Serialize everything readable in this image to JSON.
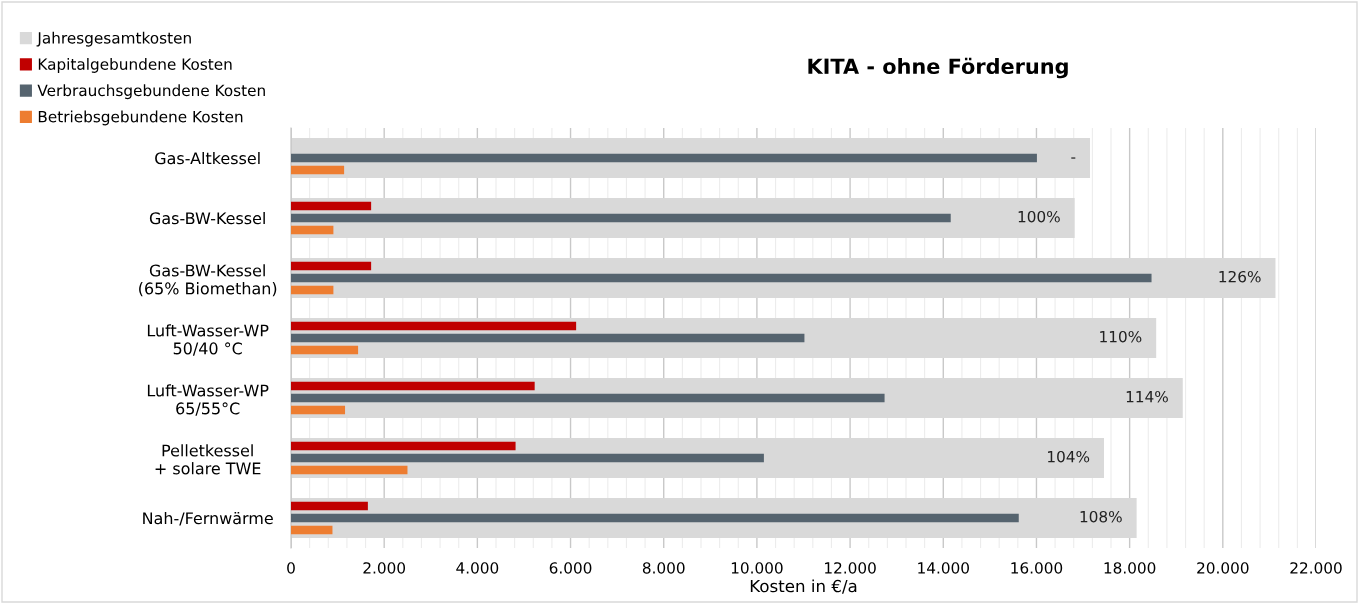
{
  "chart_data": {
    "type": "bar",
    "orientation": "horizontal",
    "title": "KITA - ohne Förderung",
    "xlabel": "Kosten in €/a",
    "categories": [
      "Gas-Altkessel",
      "Gas-BW-Kessel",
      "Gas-BW-Kessel\n(65% Biomethan)",
      "Luft-Wasser-WP\n50/40 °C",
      "Luft-Wasser-WP\n65/55°C",
      "Pelletkessel\n+ solare TWE",
      "Nah-/Fernwärme"
    ],
    "series": [
      {
        "name": "Jahresgesamtkosten",
        "color": "#d9d9d9",
        "values": [
          17150,
          16820,
          21130,
          18570,
          19140,
          17450,
          18150
        ]
      },
      {
        "name": "Kapitalgebundene Kosten",
        "color": "#c00000",
        "values": [
          null,
          1720,
          1720,
          6120,
          5230,
          4820,
          1650
        ]
      },
      {
        "name": "Verbrauchsgebundene Kosten",
        "color": "#56646f",
        "values": [
          16010,
          14160,
          18470,
          11020,
          12740,
          10150,
          15620
        ]
      },
      {
        "name": "Betriebsgebundene Kosten",
        "color": "#ed7d31",
        "values": [
          1140,
          910,
          910,
          1440,
          1160,
          2500,
          890
        ]
      }
    ],
    "xlim": [
      0,
      22000
    ],
    "xticks": [
      {
        "value": 0,
        "label": "0"
      },
      {
        "value": 2000,
        "label": "2.000"
      },
      {
        "value": 4000,
        "label": "4.000"
      },
      {
        "value": 6000,
        "label": "6.000"
      },
      {
        "value": 8000,
        "label": "8.000"
      },
      {
        "value": 10000,
        "label": "10.000"
      },
      {
        "value": 12000,
        "label": "12.000"
      },
      {
        "value": 14000,
        "label": "14.000"
      },
      {
        "value": 16000,
        "label": "16.000"
      },
      {
        "value": 18000,
        "label": "18.000"
      },
      {
        "value": 20000,
        "label": "20.000"
      },
      {
        "value": 22000,
        "label": "22.000"
      }
    ],
    "annotations": [
      {
        "text": "-",
        "x": 17150,
        "y": "Gas-Altkessel"
      },
      {
        "text": "100%",
        "x": 16820,
        "y": "Gas-BW-Kessel"
      },
      {
        "text": "126%",
        "x": 21130,
        "y": "Gas-BW-Kessel\n(65% Biomethan)"
      },
      {
        "text": "110%",
        "x": 18570,
        "y": "Luft-Wasser-WP\n50/40 °C"
      },
      {
        "text": "114%",
        "x": 19140,
        "y": "Luft-Wasser-WP\n65/55°C"
      },
      {
        "text": "104%",
        "x": 17450,
        "y": "Pelletkessel\n+ solare TWE"
      },
      {
        "text": "108%",
        "x": 18150,
        "y": "Nah-/Fernwärme"
      }
    ],
    "grid": "x",
    "legend": "top left"
  }
}
